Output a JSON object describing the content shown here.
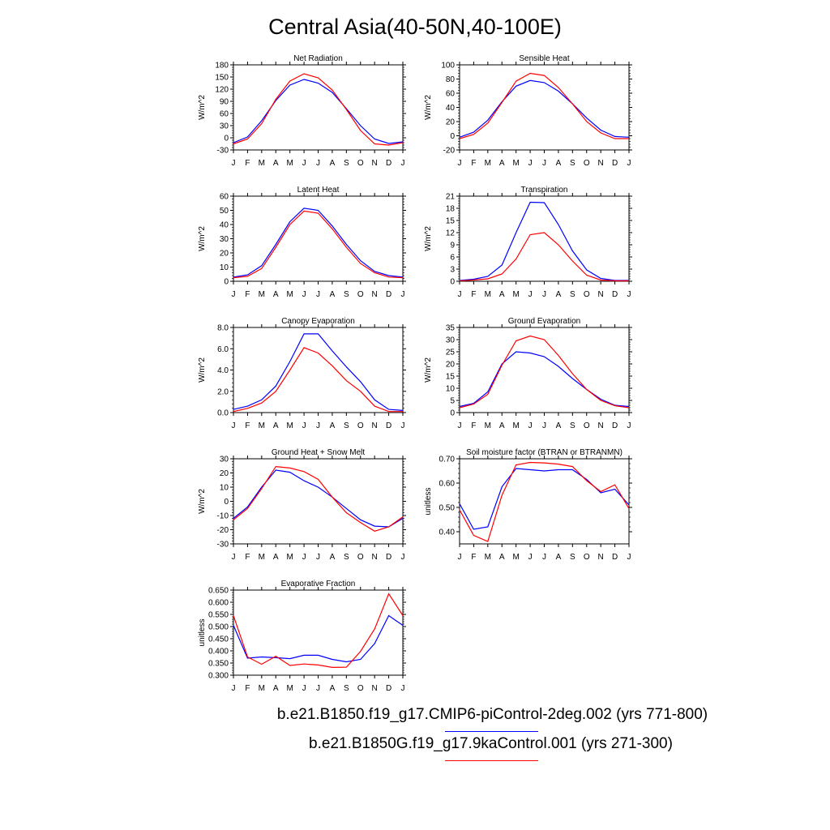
{
  "title": "Central Asia(40-50N,40-100E)",
  "legend": [
    {
      "label": "b.e21.B1850.f19_g17.CMIP6-piControl-2deg.002 (yrs 771-800)",
      "color": "#0000ff"
    },
    {
      "label": "b.e21.B1850G.f19_g17.9kaControl.001 (yrs 271-300)",
      "color": "#ff0000"
    }
  ],
  "colors": {
    "series_blue": "#0000ff",
    "series_red": "#ff0000",
    "axis": "#000000"
  },
  "chart_data": [
    {
      "type": "line",
      "title": "Net Radiation",
      "ylabel": "W/m^2",
      "x": [
        "J",
        "F",
        "M",
        "A",
        "M",
        "J",
        "J",
        "A",
        "S",
        "O",
        "N",
        "D",
        "J"
      ],
      "ylim": [
        -30,
        180
      ],
      "yticks": [
        "-30",
        "0",
        "30",
        "60",
        "90",
        "120",
        "150",
        "180"
      ],
      "ytick_values": [
        -30,
        0,
        30,
        60,
        90,
        120,
        150,
        180
      ],
      "series": [
        {
          "values": [
            -12,
            2,
            42,
            92,
            130,
            144,
            135,
            112,
            72,
            30,
            -3,
            -14,
            -10
          ]
        },
        {
          "values": [
            -15,
            -3,
            35,
            95,
            140,
            158,
            148,
            118,
            70,
            18,
            -15,
            -18,
            -12
          ]
        }
      ]
    },
    {
      "type": "line",
      "title": "Sensible Heat",
      "ylabel": "W/m^2",
      "x": [
        "J",
        "F",
        "M",
        "A",
        "M",
        "J",
        "J",
        "A",
        "S",
        "O",
        "N",
        "D",
        "J"
      ],
      "ylim": [
        -20,
        100
      ],
      "yticks": [
        "-20",
        "0",
        "20",
        "40",
        "60",
        "80",
        "100"
      ],
      "ytick_values": [
        -20,
        0,
        20,
        40,
        60,
        80,
        100
      ],
      "series": [
        {
          "values": [
            -2,
            5,
            22,
            48,
            70,
            78,
            75,
            63,
            45,
            25,
            8,
            -1,
            -2
          ]
        },
        {
          "values": [
            -4,
            2,
            18,
            47,
            77,
            88,
            85,
            68,
            45,
            20,
            4,
            -4,
            -4
          ]
        }
      ]
    },
    {
      "type": "line",
      "title": "Latent Heat",
      "ylabel": "W/m^2",
      "x": [
        "J",
        "F",
        "M",
        "A",
        "M",
        "J",
        "J",
        "A",
        "S",
        "O",
        "N",
        "D",
        "J"
      ],
      "ylim": [
        0,
        60
      ],
      "yticks": [
        "0",
        "10",
        "20",
        "30",
        "40",
        "50",
        "60"
      ],
      "ytick_values": [
        0,
        10,
        20,
        30,
        40,
        50,
        60
      ],
      "series": [
        {
          "values": [
            3,
            4.5,
            11,
            26,
            42,
            51.5,
            50,
            39,
            26,
            14.5,
            7,
            4,
            3
          ]
        },
        {
          "values": [
            2.5,
            3.5,
            9,
            24,
            40,
            49.5,
            48,
            37,
            24,
            12.5,
            6,
            3,
            2.5
          ]
        }
      ]
    },
    {
      "type": "line",
      "title": "Transpiration",
      "ylabel": "W/m^2",
      "x": [
        "J",
        "F",
        "M",
        "A",
        "M",
        "J",
        "J",
        "A",
        "S",
        "O",
        "N",
        "D",
        "J"
      ],
      "ylim": [
        0,
        21
      ],
      "yticks": [
        "0",
        "3",
        "6",
        "9",
        "12",
        "15",
        "18",
        "21"
      ],
      "ytick_values": [
        0,
        3,
        6,
        9,
        12,
        15,
        18,
        21
      ],
      "series": [
        {
          "values": [
            0.2,
            0.5,
            1.2,
            4,
            12,
            19.5,
            19.4,
            14,
            7.5,
            2.8,
            0.7,
            0.2,
            0.2
          ]
        },
        {
          "values": [
            0.1,
            0.3,
            0.6,
            1.8,
            5.5,
            11.5,
            12,
            9,
            5,
            1.5,
            0.3,
            0.1,
            0.1
          ]
        }
      ]
    },
    {
      "type": "line",
      "title": "Canopy Evaporation",
      "ylabel": "W/m^2",
      "x": [
        "J",
        "F",
        "M",
        "A",
        "M",
        "J",
        "J",
        "A",
        "S",
        "O",
        "N",
        "D",
        "J"
      ],
      "ylim": [
        0,
        8
      ],
      "yticks": [
        "0.0",
        "2.0",
        "4.0",
        "6.0",
        "8.0"
      ],
      "ytick_values": [
        0,
        2,
        4,
        6,
        8
      ],
      "series": [
        {
          "values": [
            0.3,
            0.6,
            1.2,
            2.5,
            4.8,
            7.4,
            7.4,
            5.8,
            4.3,
            2.9,
            1.2,
            0.3,
            0.2
          ]
        },
        {
          "values": [
            0.1,
            0.4,
            0.9,
            2,
            4,
            6.1,
            5.6,
            4.4,
            3,
            2,
            0.6,
            0.1,
            0.1
          ]
        }
      ]
    },
    {
      "type": "line",
      "title": "Ground Evaporation",
      "ylabel": "W/m^2",
      "x": [
        "J",
        "F",
        "M",
        "A",
        "M",
        "J",
        "J",
        "A",
        "S",
        "O",
        "N",
        "D",
        "J"
      ],
      "ylim": [
        0,
        35
      ],
      "yticks": [
        "0",
        "5",
        "10",
        "15",
        "20",
        "25",
        "30",
        "35"
      ],
      "ytick_values": [
        0,
        5,
        10,
        15,
        20,
        25,
        30,
        35
      ],
      "series": [
        {
          "values": [
            2.5,
            3.8,
            8.5,
            20,
            25,
            24.5,
            23,
            19,
            14,
            9.5,
            5.5,
            3,
            2.5
          ]
        },
        {
          "values": [
            2,
            3.5,
            7.5,
            19.5,
            29.5,
            31.5,
            30,
            23.5,
            16,
            9.5,
            5,
            2.8,
            2
          ]
        }
      ]
    },
    {
      "type": "line",
      "title": "Ground Heat + Snow Melt",
      "ylabel": "W/m^2",
      "x": [
        "J",
        "F",
        "M",
        "A",
        "M",
        "J",
        "J",
        "A",
        "S",
        "O",
        "N",
        "D",
        "J"
      ],
      "ylim": [
        -30,
        30
      ],
      "yticks": [
        "-30",
        "-20",
        "-10",
        "0",
        "10",
        "20",
        "30"
      ],
      "ytick_values": [
        -30,
        -20,
        -10,
        0,
        10,
        20,
        30
      ],
      "series": [
        {
          "values": [
            -12,
            -4,
            10,
            22,
            20.5,
            14.5,
            10,
            3,
            -5,
            -13,
            -17.5,
            -18,
            -12
          ]
        },
        {
          "values": [
            -13,
            -5,
            9,
            24.5,
            23.5,
            21,
            15.5,
            3,
            -8,
            -15,
            -21,
            -18,
            -11
          ]
        }
      ]
    },
    {
      "type": "line",
      "title": "Soil moisture factor (BTRAN or BTRANMN)",
      "ylabel": "unitless",
      "x": [
        "J",
        "F",
        "M",
        "A",
        "M",
        "J",
        "J",
        "A",
        "S",
        "O",
        "N",
        "D",
        "J"
      ],
      "ylim": [
        0.35,
        0.7
      ],
      "yticks": [
        "0.40",
        "0.50",
        "0.60",
        "0.70"
      ],
      "ytick_values": [
        0.4,
        0.5,
        0.6,
        0.7
      ],
      "series": [
        {
          "values": [
            0.515,
            0.41,
            0.42,
            0.585,
            0.66,
            0.655,
            0.65,
            0.655,
            0.655,
            0.615,
            0.56,
            0.575,
            0.51
          ]
        },
        {
          "values": [
            0.49,
            0.385,
            0.36,
            0.55,
            0.675,
            0.685,
            0.683,
            0.678,
            0.668,
            0.61,
            0.565,
            0.593,
            0.495
          ]
        }
      ]
    },
    {
      "type": "line",
      "title": "Evaporative Fraction",
      "ylabel": "unitless",
      "x": [
        "J",
        "F",
        "M",
        "A",
        "M",
        "J",
        "J",
        "A",
        "S",
        "O",
        "N",
        "D",
        "J"
      ],
      "ylim": [
        0.3,
        0.65
      ],
      "yticks": [
        "0.300",
        "0.350",
        "0.400",
        "0.450",
        "0.500",
        "0.550",
        "0.600",
        "0.650"
      ],
      "ytick_values": [
        0.3,
        0.35,
        0.4,
        0.45,
        0.5,
        0.55,
        0.6,
        0.65
      ],
      "series": [
        {
          "values": [
            0.505,
            0.37,
            0.375,
            0.372,
            0.368,
            0.382,
            0.382,
            0.365,
            0.355,
            0.365,
            0.43,
            0.545,
            0.505
          ]
        },
        {
          "values": [
            0.545,
            0.375,
            0.345,
            0.378,
            0.34,
            0.346,
            0.342,
            0.332,
            0.333,
            0.398,
            0.49,
            0.635,
            0.545
          ]
        }
      ]
    }
  ]
}
